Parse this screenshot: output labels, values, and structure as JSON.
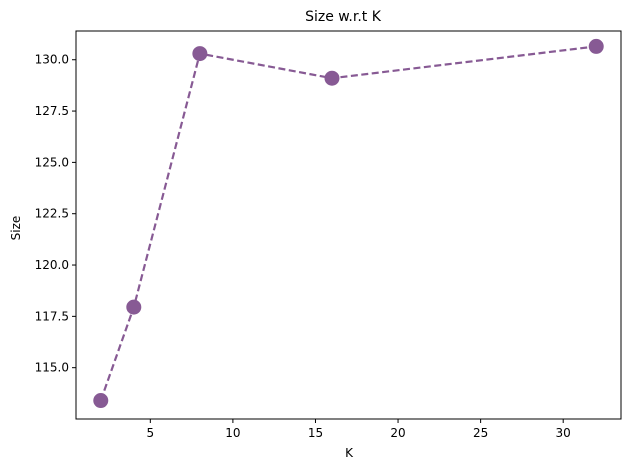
{
  "chart_data": {
    "type": "line",
    "title": "Size w.r.t K",
    "xlabel": "K",
    "ylabel": "Size",
    "x": [
      2,
      4,
      8,
      16,
      32
    ],
    "series": [
      {
        "values": [
          113.4,
          117.95,
          130.3,
          129.1,
          130.65
        ]
      }
    ],
    "xlim": [
      0.5,
      33.5
    ],
    "ylim": [
      112.5,
      131.4
    ],
    "xticks": [
      5,
      10,
      15,
      20,
      25,
      30
    ],
    "xtick_labels": [
      "5",
      "10",
      "15",
      "20",
      "25",
      "30"
    ],
    "yticks": [
      115.0,
      117.5,
      120.0,
      122.5,
      125.0,
      127.5,
      130.0
    ],
    "ytick_labels": [
      "115.0",
      "117.5",
      "120.0",
      "122.5",
      "125.0",
      "127.5",
      "130.0"
    ],
    "line_style": "dashed",
    "marker": "circle",
    "grid": false,
    "legend": "none"
  },
  "colors": {
    "series": "#875a94",
    "axes": "#000000",
    "background": "#ffffff"
  }
}
